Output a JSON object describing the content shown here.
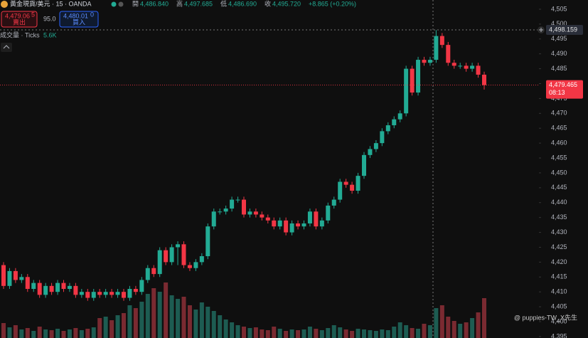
{
  "chart_data": {
    "type": "candlestick",
    "symbol": "黃金現貨/美元 · 15 · OANDA",
    "ohlc_labels": {
      "open_label": "開",
      "open": "4,486.840",
      "high_label": "高",
      "high": "4,497.685",
      "low_label": "低",
      "low": "4,486.690",
      "close_label": "收",
      "close": "4,495.720",
      "change": "+8.865 (+0.20%)"
    },
    "sell": {
      "price": "4,479.06",
      "price_sup": "5",
      "label": "賣出"
    },
    "spread": "95.0",
    "buy": {
      "price": "4,480.01",
      "price_sup": "0",
      "label": "買入"
    },
    "volume_label": "成交量 · Ticks",
    "volume_value": "5.6K",
    "crosshair_price": "4,498.159",
    "last_price": "4,479.465",
    "countdown": "08:13",
    "watermark": "@ puppies-TW_X先生",
    "up_color": "#22ab94",
    "down_color": "#f23645",
    "up_volume_color": "#1d5c52",
    "down_volume_color": "#7a2a31",
    "ylim": [
      4394.5,
      4508.1
    ],
    "yticks": [
      {
        "value": 4395,
        "label": "4,395"
      },
      {
        "value": 4400,
        "label": "4,400"
      },
      {
        "value": 4405,
        "label": "4,405"
      },
      {
        "value": 4410,
        "label": "4,410"
      },
      {
        "value": 4415,
        "label": "4,415"
      },
      {
        "value": 4420,
        "label": "4,420"
      },
      {
        "value": 4425,
        "label": "4,425"
      },
      {
        "value": 4430,
        "label": "4,430"
      },
      {
        "value": 4435,
        "label": "4,435"
      },
      {
        "value": 4440,
        "label": "4,440"
      },
      {
        "value": 4445,
        "label": "4,445"
      },
      {
        "value": 4450,
        "label": "4,450"
      },
      {
        "value": 4455,
        "label": "4,455"
      },
      {
        "value": 4460,
        "label": "4,460"
      },
      {
        "value": 4465,
        "label": "4,465"
      },
      {
        "value": 4470,
        "label": "4,470"
      },
      {
        "value": 4475,
        "label": "4,475"
      },
      {
        "value": 4480,
        "label": "4,480"
      },
      {
        "value": 4485,
        "label": "4,485"
      },
      {
        "value": 4490,
        "label": "4,490"
      },
      {
        "value": 4495,
        "label": "4,495"
      },
      {
        "value": 4500,
        "label": "4,500"
      },
      {
        "value": 4505,
        "label": "4,505"
      }
    ],
    "open": [
      4419,
      4412,
      4417,
      4414,
      4415,
      4411,
      4413,
      4409,
      4412,
      4410,
      4413,
      4411,
      4412,
      4409,
      4410,
      4408,
      4410,
      4409,
      4410,
      4409,
      4410,
      4408,
      4411,
      4410,
      4414,
      4418,
      4416,
      4424,
      4420,
      4425,
      4426,
      4419,
      4418,
      4420,
      4422,
      4432,
      4437,
      4437,
      4438,
      4441,
      4441,
      4436,
      4437,
      4436,
      4435,
      4434,
      4432,
      4434,
      4430,
      4433,
      4432,
      4433,
      4437,
      4432,
      4434,
      4439,
      4441,
      4447,
      4446,
      4444,
      4449,
      4456,
      4458,
      4460,
      4464,
      4466,
      4468,
      4470,
      4485,
      4477,
      4488,
      4487,
      4488,
      4496,
      4493,
      4487,
      4486,
      4486,
      4485,
      4486,
      4483
    ],
    "high": [
      4420,
      4418,
      4418,
      4416,
      4416,
      4414,
      4414,
      4413,
      4413,
      4414,
      4414,
      4413,
      4413,
      4411,
      4411,
      4411,
      4411,
      4411,
      4411,
      4411,
      4411,
      4412,
      4412,
      4415,
      4419,
      4419,
      4425,
      4425,
      4426,
      4427,
      4427,
      4420,
      4421,
      4423,
      4433,
      4438,
      4438,
      4439,
      4442,
      4442,
      4442,
      4438,
      4438,
      4437,
      4436,
      4435,
      4435,
      4435,
      4434,
      4434,
      4434,
      4438,
      4438,
      4435,
      4440,
      4442,
      4448,
      4448,
      4447,
      4450,
      4457,
      4459,
      4461,
      4465,
      4467,
      4469,
      4471,
      4486,
      4486,
      4489,
      4489,
      4489,
      4498,
      4497,
      4494,
      4488,
      4487,
      4487,
      4487,
      4487,
      4484
    ],
    "low": [
      4411,
      4411,
      4413,
      4413,
      4410,
      4410,
      4408,
      4408,
      4409,
      4409,
      4410,
      4410,
      4408,
      4408,
      4407,
      4407,
      4408,
      4408,
      4408,
      4408,
      4407,
      4407,
      4409,
      4409,
      4413,
      4415,
      4415,
      4419,
      4419,
      4419,
      4418,
      4417,
      4417,
      4419,
      4421,
      4431,
      4436,
      4436,
      4437,
      4440,
      4435,
      4435,
      4435,
      4434,
      4433,
      4431,
      4431,
      4429,
      4429,
      4431,
      4431,
      4432,
      4431,
      4431,
      4433,
      4438,
      4440,
      4445,
      4443,
      4443,
      4448,
      4455,
      4457,
      4459,
      4463,
      4465,
      4467,
      4469,
      4476,
      4476,
      4486,
      4486,
      4487,
      4492,
      4486,
      4485,
      4485,
      4484,
      4484,
      4482,
      4478
    ],
    "close": [
      4412,
      4417,
      4414,
      4415,
      4411,
      4413,
      4409,
      4412,
      4410,
      4413,
      4411,
      4412,
      4409,
      4410,
      4408,
      4410,
      4409,
      4410,
      4409,
      4410,
      4408,
      4411,
      4410,
      4414,
      4418,
      4416,
      4424,
      4420,
      4425,
      4426,
      4419,
      4418,
      4420,
      4422,
      4432,
      4437,
      4437,
      4438,
      4441,
      4441,
      4436,
      4437,
      4436,
      4435,
      4434,
      4432,
      4434,
      4430,
      4433,
      4432,
      4433,
      4437,
      4432,
      4434,
      4439,
      4441,
      4447,
      4446,
      4444,
      4449,
      4456,
      4458,
      4460,
      4464,
      4466,
      4468,
      4470,
      4485,
      4477,
      4488,
      4487,
      4488,
      4496,
      4493,
      4487,
      4486,
      4486,
      4485,
      4486,
      4483,
      4479.5
    ],
    "volume": [
      2.1,
      1.5,
      1.8,
      1.2,
      1.4,
      1.0,
      1.6,
      1.2,
      1.1,
      1.3,
      1.0,
      1.2,
      1.4,
      1.1,
      1.3,
      1.5,
      2.8,
      3.0,
      2.5,
      3.2,
      3.5,
      4.6,
      4.2,
      5.1,
      6.2,
      7.0,
      6.5,
      7.8,
      6.0,
      5.5,
      5.8,
      4.6,
      4.0,
      5.0,
      4.4,
      3.8,
      3.2,
      2.6,
      2.2,
      1.8,
      1.6,
      1.4,
      1.5,
      1.2,
      1.1,
      1.6,
      1.3,
      1.0,
      1.2,
      1.1,
      1.2,
      1.6,
      1.3,
      1.1,
      1.4,
      1.8,
      1.5,
      1.2,
      1.0,
      1.3,
      1.2,
      1.1,
      1.0,
      1.2,
      1.1,
      1.6,
      2.2,
      1.8,
      1.4,
      1.3,
      2.0,
      1.8,
      4.2,
      4.6,
      3.0,
      2.4,
      2.0,
      2.2,
      2.8,
      3.6,
      5.6
    ]
  }
}
